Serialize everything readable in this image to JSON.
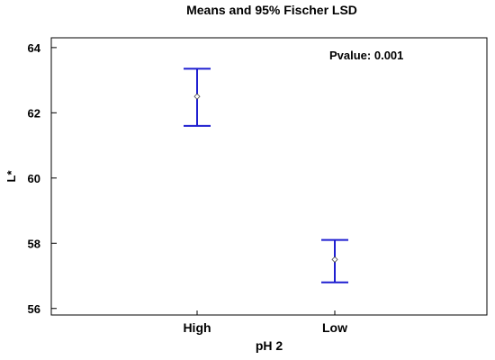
{
  "chart_data": {
    "type": "errorbar",
    "title": "Means and 95% Fischer LSD",
    "xlabel": "pH 2",
    "ylabel": "L*",
    "annotation": "Pvalue: 0.001",
    "categories": [
      "High",
      "Low"
    ],
    "means": [
      62.5,
      57.5
    ],
    "lower": [
      61.6,
      56.8
    ],
    "upper": [
      63.35,
      58.1
    ],
    "ylim": [
      55.8,
      64.3
    ],
    "yticks": [
      56,
      58,
      60,
      62,
      64
    ],
    "grid": false,
    "colors": {
      "interval": "#1f1fd0",
      "mean_marker": "#444444",
      "axis": "#000000"
    }
  }
}
